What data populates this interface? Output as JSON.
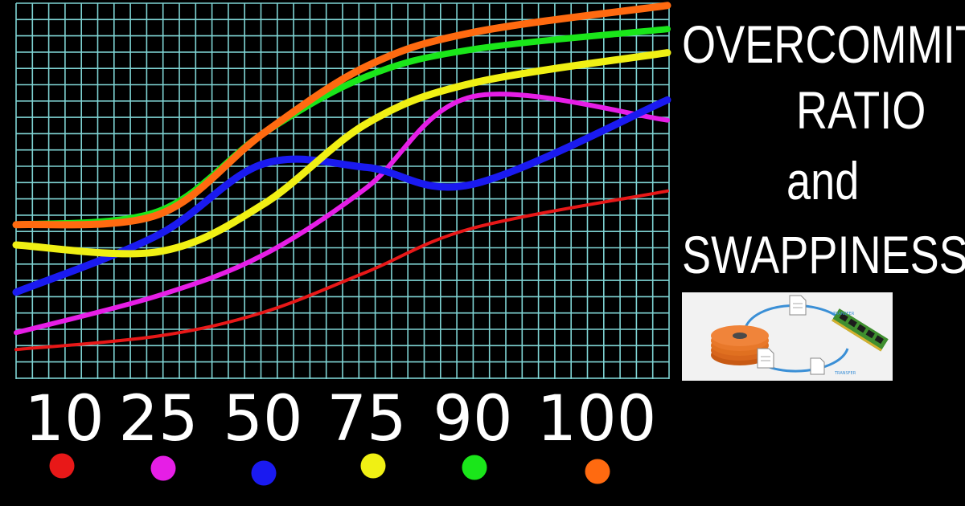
{
  "title": {
    "lines": [
      "OVERCOMMIT",
      "RATIO",
      "and",
      "SWAPPINESS"
    ]
  },
  "diagram": {
    "labels": [
      "TRANSFER",
      "TRANSFER"
    ],
    "colors": {
      "disk": "#e8782a",
      "arrows": "#3a8fd6",
      "chip": "#3f8f2f"
    },
    "icons": [
      "hard-disk-icon",
      "document-icon",
      "memory-chip-icon"
    ]
  },
  "chart_data": {
    "type": "line",
    "x": [
      10,
      25,
      50,
      75,
      90,
      100
    ],
    "xlabel": "",
    "ylabel": "",
    "grid": true,
    "grid_color": "#7fd4d4",
    "background": "#000000",
    "legend": "bottom, colored dots under x tick labels",
    "series": [
      {
        "color": "#e81818",
        "values": [
          0.04,
          0.08,
          0.15,
          0.27,
          0.4,
          0.51
        ]
      },
      {
        "color": "#e61ee6",
        "values": [
          0.09,
          0.2,
          0.32,
          0.52,
          0.79,
          0.72
        ]
      },
      {
        "color": "#1a1af0",
        "values": [
          0.21,
          0.38,
          0.59,
          0.58,
          0.53,
          0.78
        ]
      },
      {
        "color": "#f0f014",
        "values": [
          0.35,
          0.33,
          0.47,
          0.71,
          0.83,
          0.92
        ]
      },
      {
        "color": "#1ae61a",
        "values": [
          0.41,
          0.45,
          0.68,
          0.85,
          0.93,
          0.99
        ]
      },
      {
        "color": "#ff6a10",
        "values": [
          0.41,
          0.44,
          0.68,
          0.88,
          0.98,
          1.06
        ]
      }
    ]
  }
}
